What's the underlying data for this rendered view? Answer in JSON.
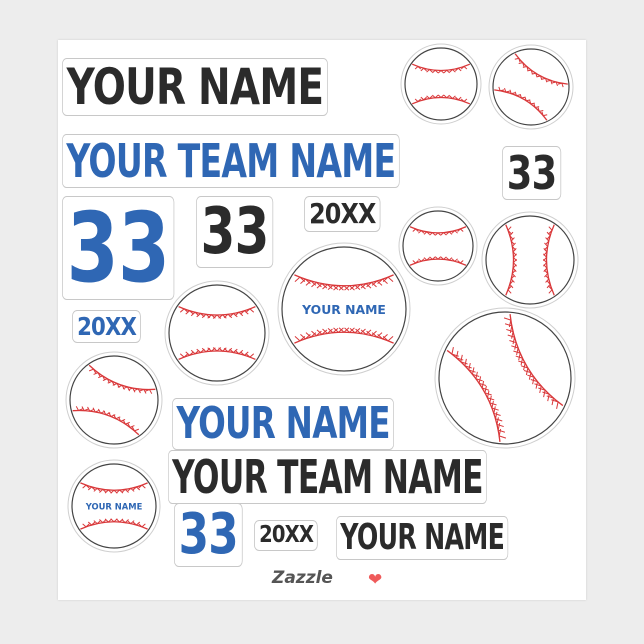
{
  "stickers": {
    "name_black_top": "YOUR NAME",
    "team_blue_top": "YOUR TEAM NAME",
    "num_black_small": "33",
    "num_blue_big": "33",
    "num_black_mid": "33",
    "year_black_top": "20XX",
    "year_blue": "20XX",
    "name_blue_mid": "YOUR NAME",
    "team_black_bottom": "YOUR TEAM NAME",
    "num_blue_bottom": "33",
    "year_black_bottom": "20XX",
    "name_black_bottom": "YOUR NAME",
    "ball_label_large": "YOUR NAME",
    "ball_label_small": "YOUR NAME"
  },
  "brand": {
    "name": "Zazzle",
    "icon": "heart-icon"
  },
  "colors": {
    "blue": "#2f67b4",
    "black": "#2b2b2b",
    "stitch": "#d9383a",
    "heart": "#ef5a5a"
  }
}
